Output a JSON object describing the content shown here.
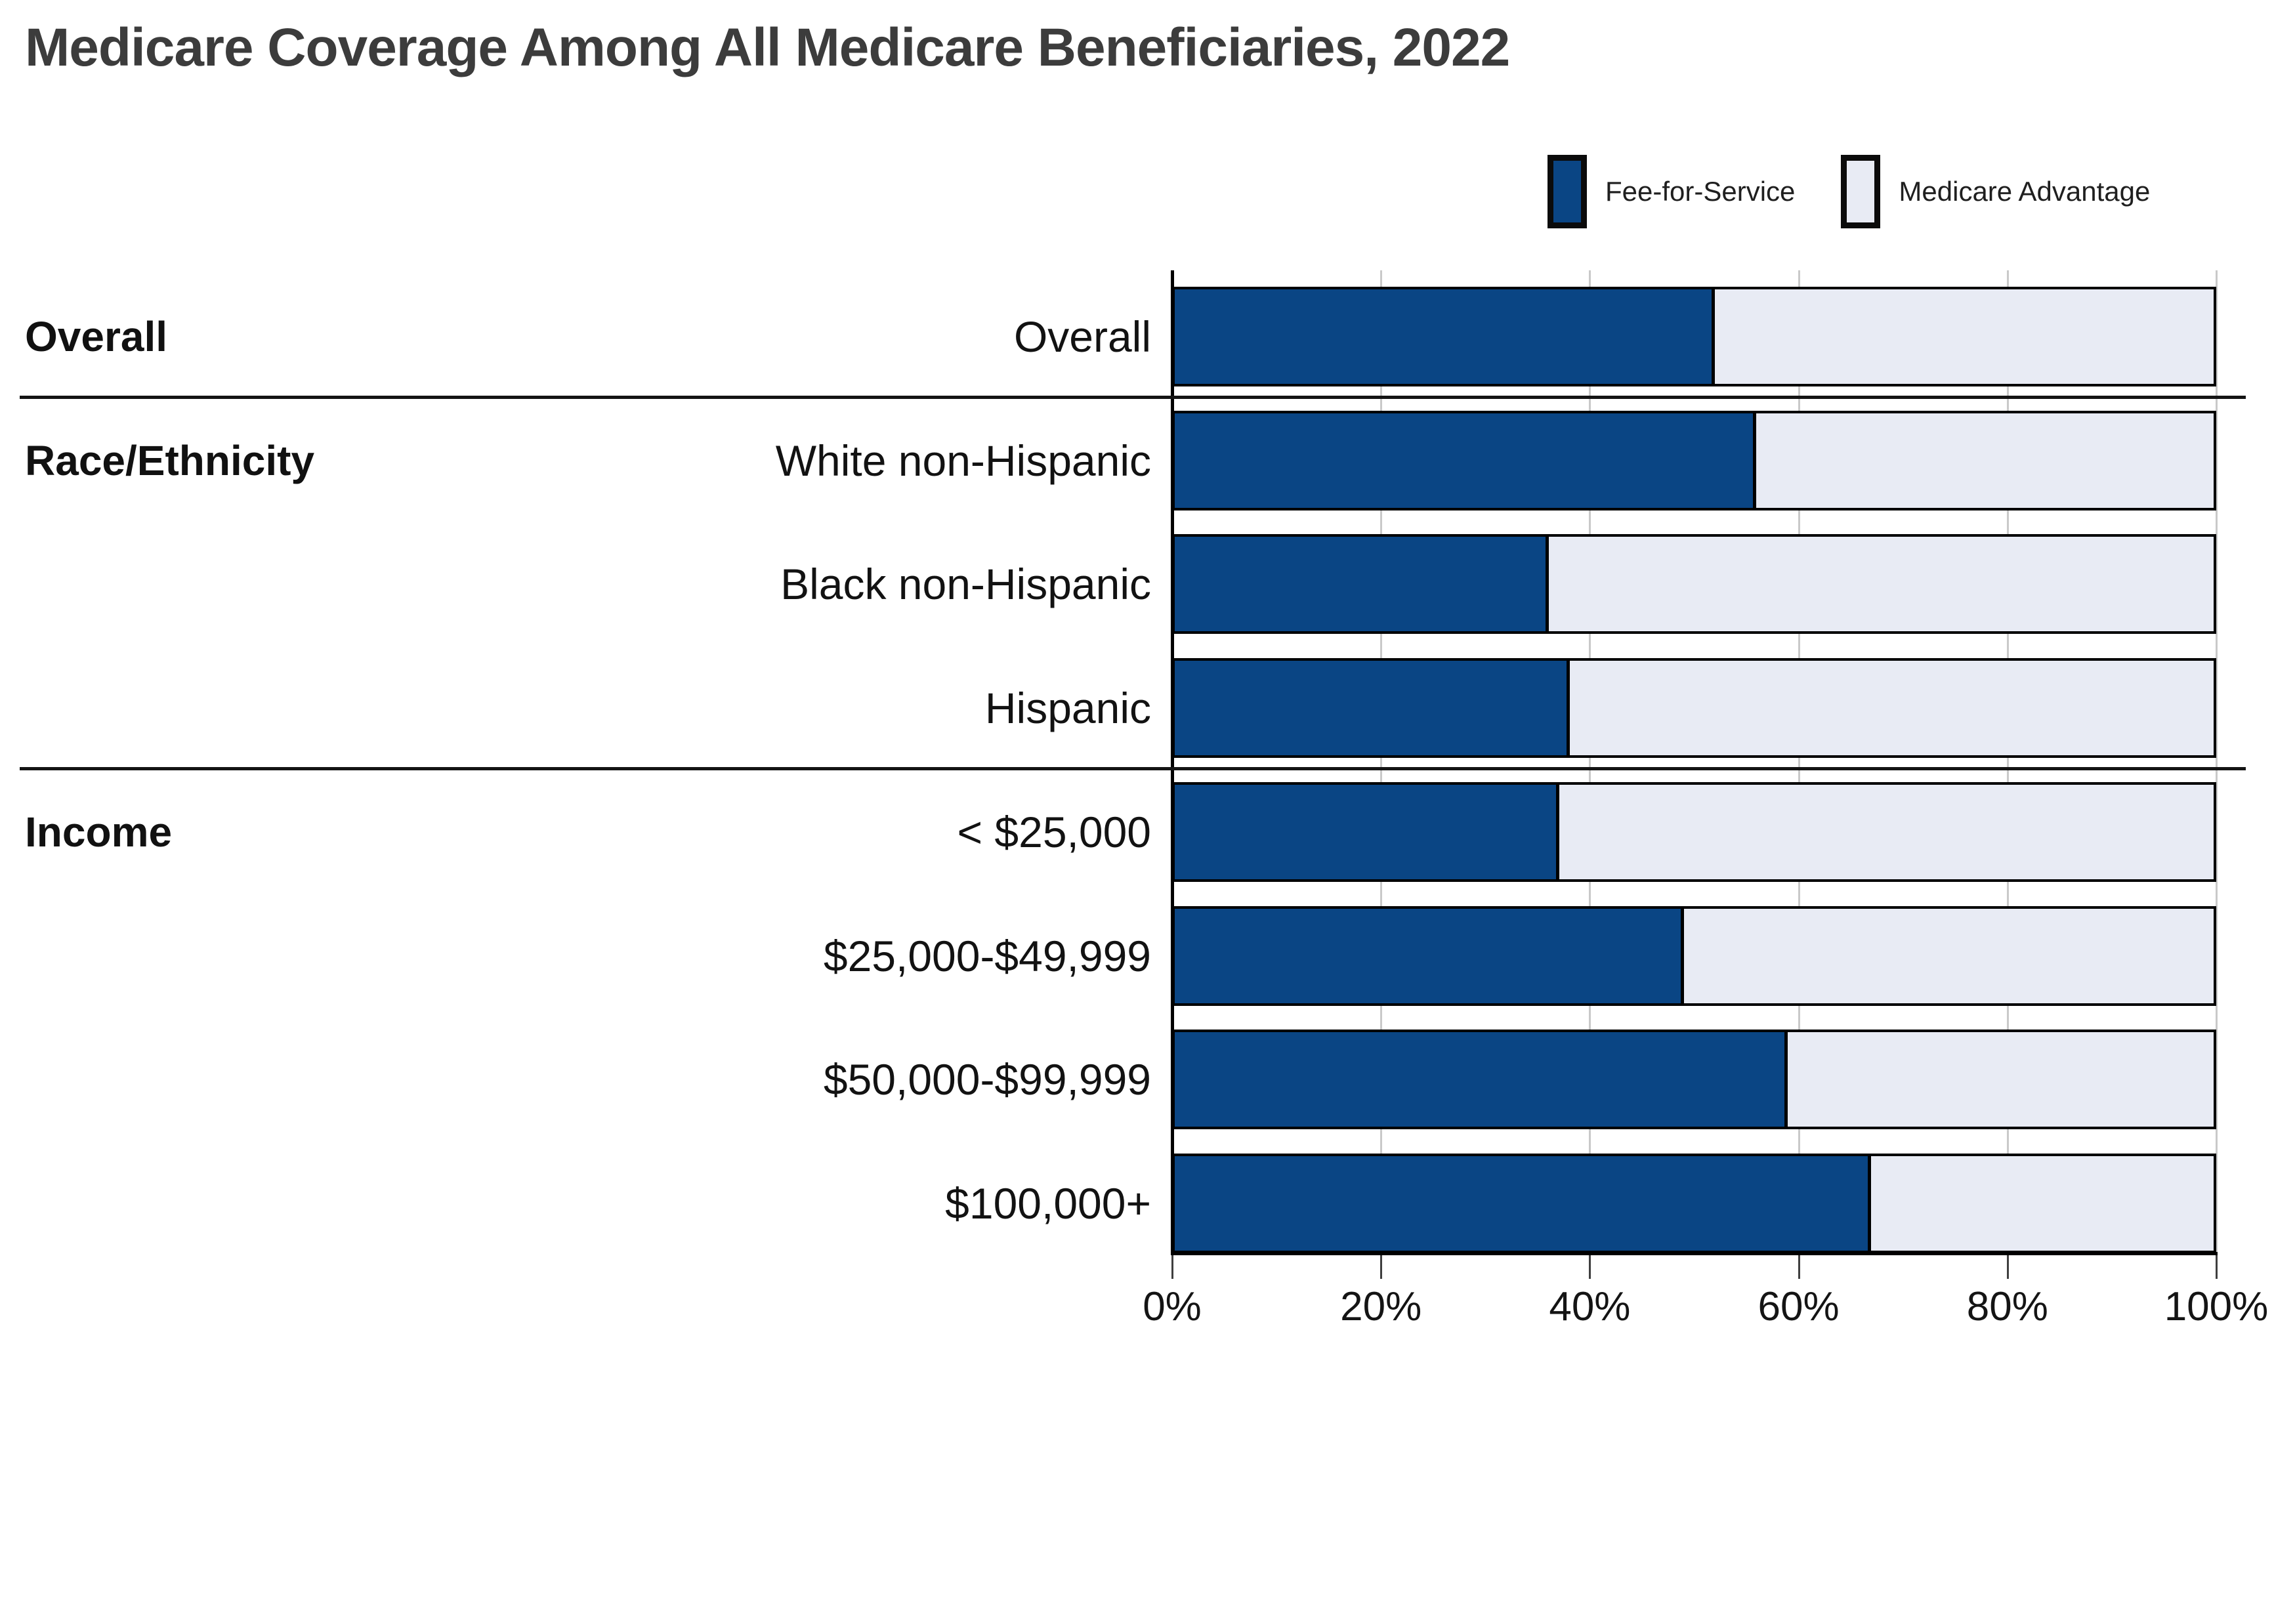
{
  "title": "Medicare Coverage Among All Medicare Beneficiaries, 2022",
  "legend": {
    "items": [
      {
        "label": "Fee-for-Service",
        "color": "#0a4584"
      },
      {
        "label": "Medicare Advantage",
        "color": "#e8ebf4"
      }
    ]
  },
  "colors": {
    "ffs": "#0a4584",
    "ma": "#e8ebf4",
    "bar_border": "#000000",
    "title_text": "#3c3c3c",
    "gridline": "#c9c9c9"
  },
  "chart_data": {
    "type": "bar",
    "orientation": "horizontal",
    "stacked": true,
    "title": "Medicare Coverage Among All Medicare Beneficiaries, 2022",
    "xlabel": "",
    "ylabel": "",
    "xlim": [
      0,
      100
    ],
    "x_tick_labels": [
      "0%",
      "20%",
      "40%",
      "60%",
      "80%",
      "100%"
    ],
    "grid": true,
    "legend_position": "top-right",
    "series_names": [
      "Fee-for-Service",
      "Medicare Advantage"
    ],
    "groups": [
      {
        "group_label": "Overall",
        "rows": [
          {
            "label": "Overall",
            "fee_for_service_pct": 52,
            "medicare_advantage_pct": 48
          }
        ]
      },
      {
        "group_label": "Race/Ethnicity",
        "rows": [
          {
            "label": "White non-Hispanic",
            "fee_for_service_pct": 56,
            "medicare_advantage_pct": 44
          },
          {
            "label": "Black non-Hispanic",
            "fee_for_service_pct": 36,
            "medicare_advantage_pct": 64
          },
          {
            "label": "Hispanic",
            "fee_for_service_pct": 38,
            "medicare_advantage_pct": 62
          }
        ]
      },
      {
        "group_label": "Income",
        "rows": [
          {
            "label": "< $25,000",
            "fee_for_service_pct": 37,
            "medicare_advantage_pct": 63
          },
          {
            "label": "$25,000-$49,999",
            "fee_for_service_pct": 49,
            "medicare_advantage_pct": 51
          },
          {
            "label": "$50,000-$99,999",
            "fee_for_service_pct": 59,
            "medicare_advantage_pct": 41
          },
          {
            "label": "$100,000+",
            "fee_for_service_pct": 67,
            "medicare_advantage_pct": 33
          }
        ]
      }
    ]
  }
}
